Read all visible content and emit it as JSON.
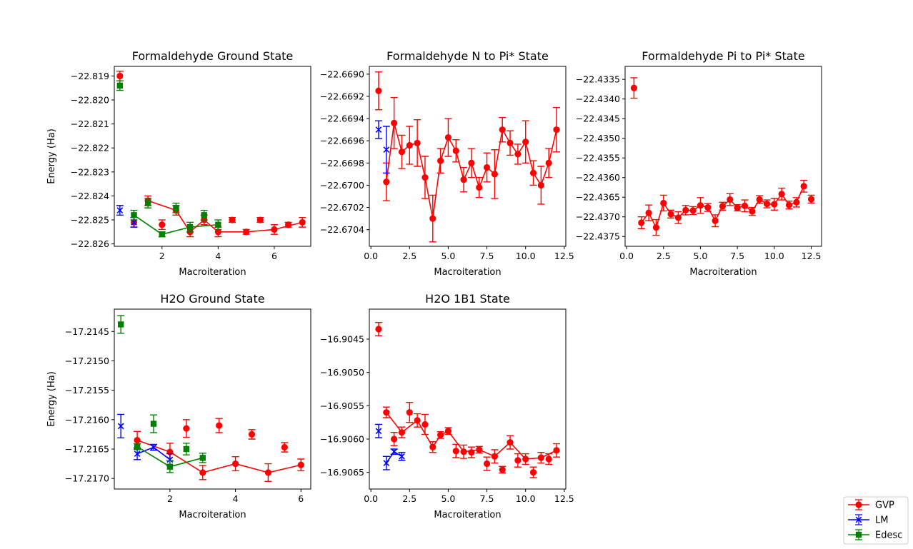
{
  "colors": {
    "GVP": "#ff0000",
    "LM": "#0000ff",
    "Edesc": "#008000"
  },
  "legend": {
    "entries": [
      {
        "label": "GVP",
        "color": "#ff0000",
        "marker": "circle"
      },
      {
        "label": "LM",
        "color": "#0000ff",
        "marker": "x"
      },
      {
        "label": "Edesc",
        "color": "#008000",
        "marker": "square"
      }
    ]
  },
  "chart_data": [
    {
      "type": "scatter",
      "title": "Formaldehyde Ground State",
      "xlabel": "Macroiteration",
      "ylabel": "Energy (Ha)",
      "xlim": [
        0.3,
        7.3
      ],
      "ylim": [
        -22.8261,
        -22.8186
      ],
      "xticks": [
        "2",
        "4",
        "6"
      ],
      "xtick_values": [
        2,
        4,
        6
      ],
      "yticks": [
        "−22.819",
        "−22.820",
        "−22.821",
        "−22.822",
        "−22.823",
        "−22.824",
        "−22.825",
        "−22.826"
      ],
      "ytick_values": [
        -22.819,
        -22.82,
        -22.821,
        -22.822,
        -22.823,
        -22.824,
        -22.825,
        -22.826
      ],
      "series": [
        {
          "name": "GVP",
          "x": [
            0.5,
            1,
            1.5,
            2,
            2.5,
            3,
            3.5,
            4,
            4.5,
            5,
            5.5,
            6,
            6.5,
            7
          ],
          "y": [
            -22.819,
            -22.8251,
            -22.8242,
            -22.8252,
            -22.8246,
            -22.8255,
            -22.825,
            -22.8255,
            -22.825,
            -22.8255,
            -22.825,
            -22.8254,
            -22.8252,
            -22.8251
          ],
          "err": [
            0.0002,
            0.0002,
            0.0002,
            0.0002,
            0.0002,
            0.0002,
            0.0002,
            0.0002,
            0.0001,
            0.0001,
            0.0001,
            0.0002,
            0.0001,
            0.0002
          ],
          "line": [
            2,
            4,
            5,
            6,
            7,
            9,
            11,
            13
          ]
        },
        {
          "name": "LM",
          "x": [
            0.5,
            1
          ],
          "y": [
            -22.8246,
            -22.8251
          ],
          "err": [
            0.0002,
            0.0002
          ],
          "line": []
        },
        {
          "name": "Edesc",
          "x": [
            0.5,
            1,
            1.5,
            2.5,
            3.5,
            2,
            3,
            4
          ],
          "y": [
            -22.8194,
            -22.8248,
            -22.8243,
            -22.8245,
            -22.8248,
            -22.8256,
            -22.8253,
            -22.8252
          ],
          "err": [
            0.0002,
            0.0002,
            0.0002,
            0.0002,
            0.0002,
            0.0001,
            0.0002,
            0.0002
          ],
          "line": [
            1,
            5,
            6,
            7
          ]
        }
      ]
    },
    {
      "type": "scatter",
      "title": "Formaldehyde N to Pi* State",
      "xlabel": "Macroiteration",
      "ylabel": "",
      "xlim": [
        -0.1,
        12.6
      ],
      "ylim": [
        -22.67055,
        -22.66893
      ],
      "xticks": [
        "0.0",
        "2.5",
        "5.0",
        "7.5",
        "10.0",
        "12.5"
      ],
      "xtick_values": [
        0,
        2.5,
        5,
        7.5,
        10,
        12.5
      ],
      "yticks": [
        "−22.6690",
        "−22.6692",
        "−22.6694",
        "−22.6696",
        "−22.6698",
        "−22.6700",
        "−22.6702",
        "−22.6704"
      ],
      "ytick_values": [
        -22.669,
        -22.6692,
        -22.6694,
        -22.6696,
        -22.6698,
        -22.67,
        -22.6702,
        -22.6704
      ],
      "series": [
        {
          "name": "GVP",
          "x": [
            0.5,
            1,
            1.5,
            2,
            2.5,
            3,
            3.5,
            4,
            4.5,
            5,
            5.5,
            6,
            6.5,
            7,
            7.5,
            8,
            8.5,
            9,
            9.5,
            10,
            10.5,
            11,
            11.5,
            12
          ],
          "y": [
            -22.66915,
            -22.66997,
            -22.66944,
            -22.6697,
            -22.66964,
            -22.66962,
            -22.66993,
            -22.6703,
            -22.66978,
            -22.66957,
            -22.66969,
            -22.66995,
            -22.6698,
            -22.67002,
            -22.66984,
            -22.6699,
            -22.6695,
            -22.66962,
            -22.66972,
            -22.66961,
            -22.66989,
            -22.67,
            -22.6698,
            -22.6695
          ],
          "err": [
            0.00017,
            0.00017,
            0.00023,
            0.00015,
            0.00017,
            0.00021,
            0.00019,
            0.00021,
            0.00011,
            0.00017,
            0.0001,
            0.00011,
            0.00013,
            9e-05,
            0.00013,
            0.00022,
            0.00011,
            0.00011,
            9e-05,
            0.00019,
            0.00011,
            0.00017,
            0.00013,
            0.0002
          ],
          "line": [
            1,
            2,
            3,
            4,
            5,
            6,
            7,
            8,
            9,
            10,
            11,
            12,
            13,
            14,
            15,
            16,
            17,
            18,
            19,
            20,
            21,
            22,
            23
          ]
        },
        {
          "name": "LM",
          "x": [
            0.5,
            1
          ],
          "y": [
            -22.6695,
            -22.66968
          ],
          "err": [
            8e-05,
            0.00021
          ],
          "line": []
        }
      ]
    },
    {
      "type": "scatter",
      "title": "Formaldehyde Pi to Pi* State",
      "xlabel": "Macroiteration",
      "ylabel": "",
      "xlim": [
        -0.1,
        13.2
      ],
      "ylim": [
        -22.43775,
        -22.43317
      ],
      "xticks": [
        "0.0",
        "2.5",
        "5.0",
        "7.5",
        "10.0",
        "12.5"
      ],
      "xtick_values": [
        0,
        2.5,
        5,
        7.5,
        10,
        12.5
      ],
      "yticks": [
        "−22.4335",
        "−22.4340",
        "−22.4345",
        "−22.4350",
        "−22.4355",
        "−22.4360",
        "−22.4365",
        "−22.4370",
        "−22.4375"
      ],
      "ytick_values": [
        -22.4335,
        -22.434,
        -22.4345,
        -22.435,
        -22.4355,
        -22.436,
        -22.4365,
        -22.437,
        -22.4375
      ],
      "series": [
        {
          "name": "GVP",
          "x": [
            0.5,
            1,
            1.5,
            2,
            2.5,
            3,
            3.5,
            4,
            4.5,
            5,
            5.5,
            6,
            6.5,
            7,
            7.5,
            8,
            8.5,
            9,
            9.5,
            10,
            10.5,
            11,
            11.5,
            12,
            12.5
          ],
          "y": [
            -22.43372,
            -22.43715,
            -22.4369,
            -22.43727,
            -22.43665,
            -22.43693,
            -22.43702,
            -22.43683,
            -22.43684,
            -22.43671,
            -22.43676,
            -22.4371,
            -22.43673,
            -22.43656,
            -22.43677,
            -22.43672,
            -22.43686,
            -22.43656,
            -22.43667,
            -22.43668,
            -22.43642,
            -22.4367,
            -22.43663,
            -22.43622,
            -22.43655
          ],
          "err": [
            0.00026,
            0.00015,
            0.0002,
            0.0002,
            0.0002,
            0.0001,
            0.00015,
            0.00012,
            0.0001,
            0.0002,
            0.0001,
            0.00015,
            0.0001,
            0.00015,
            8e-05,
            0.00015,
            0.0001,
            0.0001,
            0.0001,
            0.00015,
            0.00015,
            0.0001,
            0.00012,
            0.00015,
            0.0001
          ],
          "line": [
            1,
            2,
            3,
            4,
            5,
            6,
            7,
            8,
            9,
            10,
            11,
            12,
            13,
            14,
            15,
            16,
            17,
            18,
            19,
            20,
            21,
            22,
            23
          ]
        }
      ]
    },
    {
      "type": "scatter",
      "title": "H2O Ground State",
      "xlabel": "Macroiteration",
      "ylabel": "Energy (Ha)",
      "xlim": [
        0.3,
        6.3
      ],
      "ylim": [
        -17.21718,
        -17.21412
      ],
      "xticks": [
        "2",
        "4",
        "6"
      ],
      "xtick_values": [
        2,
        4,
        6
      ],
      "yticks": [
        "−17.2145",
        "−17.2150",
        "−17.2155",
        "−17.2160",
        "−17.2165",
        "−17.2170"
      ],
      "ytick_values": [
        -17.2145,
        -17.215,
        -17.2155,
        -17.216,
        -17.2165,
        -17.217
      ],
      "series": [
        {
          "name": "GVP",
          "x": [
            1,
            2,
            2.5,
            3,
            3.5,
            4,
            4.5,
            5,
            5.5,
            6
          ],
          "y": [
            -17.21635,
            -17.21655,
            -17.21615,
            -17.2169,
            -17.2161,
            -17.21675,
            -17.21625,
            -17.2169,
            -17.21647,
            -17.21677
          ],
          "err": [
            0.00015,
            0.00015,
            0.00015,
            0.00012,
            0.00012,
            0.00012,
            8e-05,
            0.00015,
            8e-05,
            0.0001
          ],
          "line": [
            0,
            1,
            3,
            5,
            7,
            9
          ]
        },
        {
          "name": "LM",
          "x": [
            0.5,
            1,
            1.5,
            2
          ],
          "y": [
            -17.21611,
            -17.21658,
            -17.21647,
            -17.21668
          ],
          "err": [
            0.0002,
            0.0001,
            5e-05,
            0.0001
          ],
          "line": [
            1,
            2,
            3
          ]
        },
        {
          "name": "Edesc",
          "x": [
            0.5,
            1,
            1.5,
            2,
            2.5,
            3
          ],
          "y": [
            -17.21438,
            -17.21646,
            -17.21607,
            -17.2168,
            -17.2165,
            -17.21665
          ],
          "err": [
            0.00015,
            5e-05,
            0.00015,
            0.0001,
            0.0001,
            8e-05
          ],
          "line": [
            1,
            3,
            5
          ]
        }
      ]
    },
    {
      "type": "scatter",
      "title": "H2O 1B1 State",
      "xlabel": "Macroiteration",
      "ylabel": "",
      "xlim": [
        -0.1,
        12.6
      ],
      "ylim": [
        -16.90675,
        -16.90405
      ],
      "xticks": [
        "0.0",
        "2.5",
        "5.0",
        "7.5",
        "10.0",
        "12.5"
      ],
      "xtick_values": [
        0,
        2.5,
        5,
        7.5,
        10,
        12.5
      ],
      "yticks": [
        "−16.9045",
        "−16.9050",
        "−16.9055",
        "−16.9060",
        "−16.9065"
      ],
      "ytick_values": [
        -16.9045,
        -16.905,
        -16.9055,
        -16.906,
        -16.9065
      ],
      "series": [
        {
          "name": "GVP",
          "x": [
            0.5,
            1,
            1.5,
            2,
            2.5,
            3,
            3.5,
            4,
            4.5,
            5,
            5.5,
            6,
            6.5,
            7,
            7.5,
            8,
            8.5,
            9,
            9.5,
            10,
            10.5,
            11,
            11.5,
            12
          ],
          "y": [
            -16.90435,
            -16.9056,
            -16.906,
            -16.9059,
            -16.9056,
            -16.90572,
            -16.90578,
            -16.90612,
            -16.90594,
            -16.90588,
            -16.90618,
            -16.90619,
            -16.9062,
            -16.90616,
            -16.90637,
            -16.90626,
            -16.90646,
            -16.90605,
            -16.90632,
            -16.9063,
            -16.9065,
            -16.90628,
            -16.9063,
            -16.90617
          ],
          "err": [
            0.0001,
            8e-05,
            0.0001,
            8e-05,
            0.00015,
            0.0001,
            0.00015,
            8e-05,
            5e-05,
            5e-05,
            0.0001,
            0.0001,
            8e-05,
            5e-05,
            0.0001,
            0.0001,
            5e-05,
            0.0001,
            0.0001,
            8e-05,
            8e-05,
            8e-05,
            8e-05,
            0.0001
          ],
          "line": [
            1,
            3,
            5,
            7,
            8,
            9,
            11,
            13,
            15,
            17,
            19,
            21,
            23
          ]
        },
        {
          "name": "LM",
          "x": [
            0.5,
            1,
            1.5,
            2
          ],
          "y": [
            -16.90588,
            -16.90636,
            -16.90619,
            -16.90626
          ],
          "err": [
            0.0001,
            0.0001,
            4e-05,
            6e-05
          ],
          "line": [
            1,
            2,
            3
          ]
        }
      ]
    }
  ]
}
